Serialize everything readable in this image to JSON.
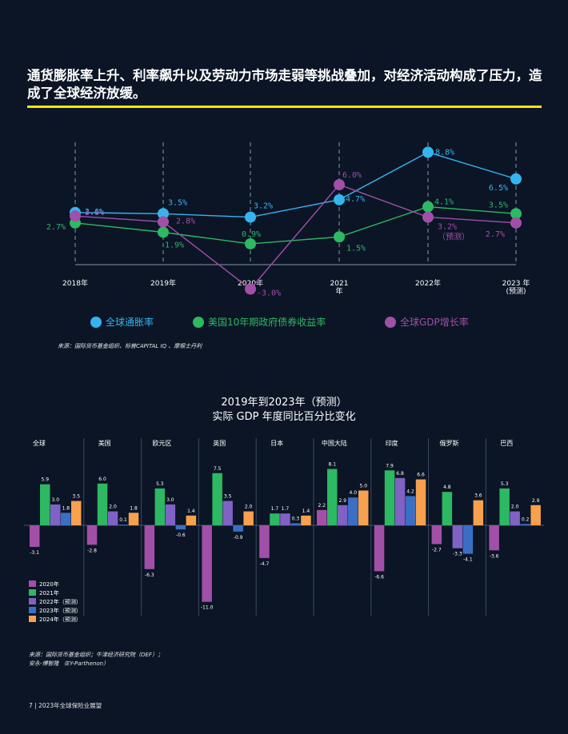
{
  "headline": "通货膨胀率上升、利率飙升以及劳动力市场走弱等挑战叠加，对经济活动构成了压力，造成了全球经济放缓。",
  "source1": "来源：国际货币基金组织、标普CAPITAL IQ 、摩根士丹利",
  "bar_title_line1": "2019年到2023年（预测）",
  "bar_title_line2": "实际 GDP 年度同比百分比变化",
  "source2_line1": "来源：国际货币基金组织；牛津经济研究院（OEF）；",
  "source2_line2": "安永-博智隆 （EY-Parthenon）",
  "footer": "7   | 2023年全球保险业展望",
  "colors": {
    "background": "#0b1526",
    "accent": "#ffe600",
    "inflation": "#35b4f0",
    "yield": "#2db862",
    "gdp": "#a24fa8"
  },
  "chart_data": [
    {
      "type": "line",
      "categories": [
        "2018年",
        "2019年",
        "2020年",
        "2021\n年",
        "2022年",
        "2023 年\n(预测)"
      ],
      "series": [
        {
          "name": "全球通胀率",
          "color": "#35b4f0",
          "values": [
            3.6,
            3.5,
            3.2,
            4.7,
            8.8,
            6.5
          ],
          "labels": [
            "3.6%",
            "3.5%",
            "3.2%",
            "4.7%",
            "8.8%",
            "6.5%"
          ]
        },
        {
          "name": "美国10年期政府债券收益率",
          "color": "#2db862",
          "values": [
            2.7,
            1.9,
            0.9,
            1.5,
            4.1,
            3.5
          ],
          "labels": [
            "2.7%",
            "1.9%",
            "0.9%",
            "1.5%",
            "4.1%",
            "3.5%"
          ]
        },
        {
          "name": "全球GDP增长率",
          "color": "#a24fa8",
          "values": [
            3.3,
            2.8,
            -3.0,
            6.0,
            3.2,
            2.7
          ],
          "labels": [
            "3.3%",
            "2.8%",
            "-3.0%",
            "6.0%",
            "3.2%\n（预测）",
            "2.7%"
          ]
        }
      ],
      "legend_position": "bottom"
    },
    {
      "type": "bar",
      "groups": [
        "全球",
        "美国",
        "欧元区",
        "英国",
        "日本",
        "中国大陆",
        "印度",
        "俄罗斯",
        "巴西"
      ],
      "series": [
        {
          "name": "2020年",
          "color": "#a24fa8",
          "values": [
            -3.1,
            -2.8,
            -6.3,
            -11.0,
            -4.7,
            2.2,
            -6.6,
            -2.7,
            -3.6
          ]
        },
        {
          "name": "2021年",
          "color": "#2db862",
          "values": [
            5.9,
            6.0,
            5.3,
            7.5,
            1.7,
            8.1,
            7.9,
            4.8,
            5.3
          ]
        },
        {
          "name": "2022年（预测）",
          "color": "#7f62c4",
          "values": [
            3.0,
            2.0,
            3.0,
            3.5,
            1.7,
            2.9,
            6.8,
            -3.3,
            2.0
          ]
        },
        {
          "name": "2023年（预测）",
          "color": "#3a6fc4",
          "values": [
            1.8,
            0.1,
            -0.6,
            -0.9,
            0.3,
            4.0,
            4.2,
            -4.1,
            0.2
          ]
        },
        {
          "name": "2024年（预测）",
          "color": "#f7a04e",
          "values": [
            3.5,
            1.8,
            1.4,
            2.0,
            1.4,
            5.0,
            6.6,
            3.6,
            2.9
          ]
        }
      ],
      "legend_position": "bottom-left"
    }
  ]
}
